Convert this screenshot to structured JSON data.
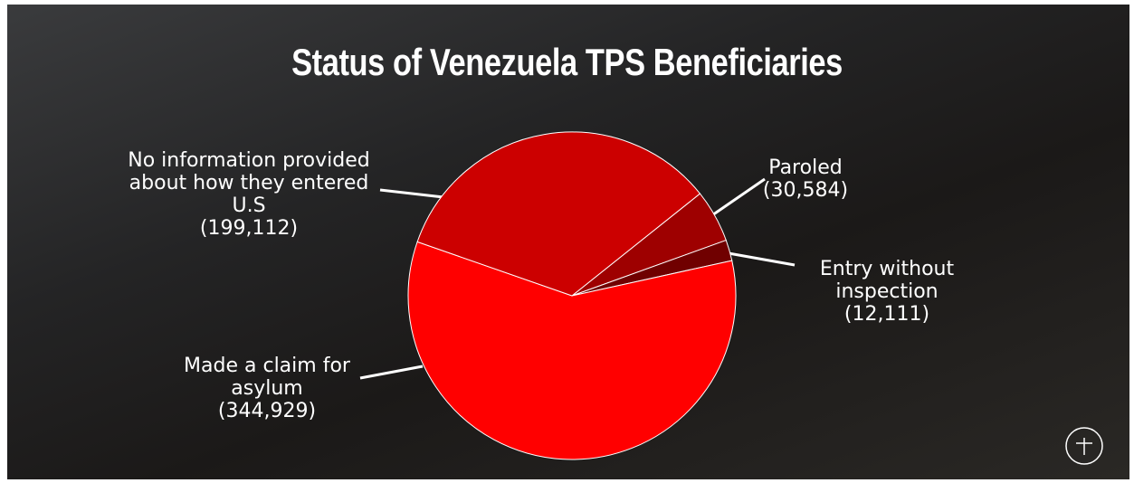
{
  "chart_data": {
    "type": "pie",
    "title": "Status of Venezuela TPS Beneficiaries",
    "categories": [
      "Paroled",
      "Entry without inspection",
      "Made a claim for asylum",
      "No information provided about how they entered U.S"
    ],
    "values": [
      30584,
      12111,
      344929,
      199112
    ],
    "value_labels": [
      "(30,584)",
      "(12,111)",
      "(344,929)",
      "(199,112)"
    ],
    "colors": [
      "#9e0000",
      "#700000",
      "#ff0000",
      "#cc0000"
    ]
  }
}
